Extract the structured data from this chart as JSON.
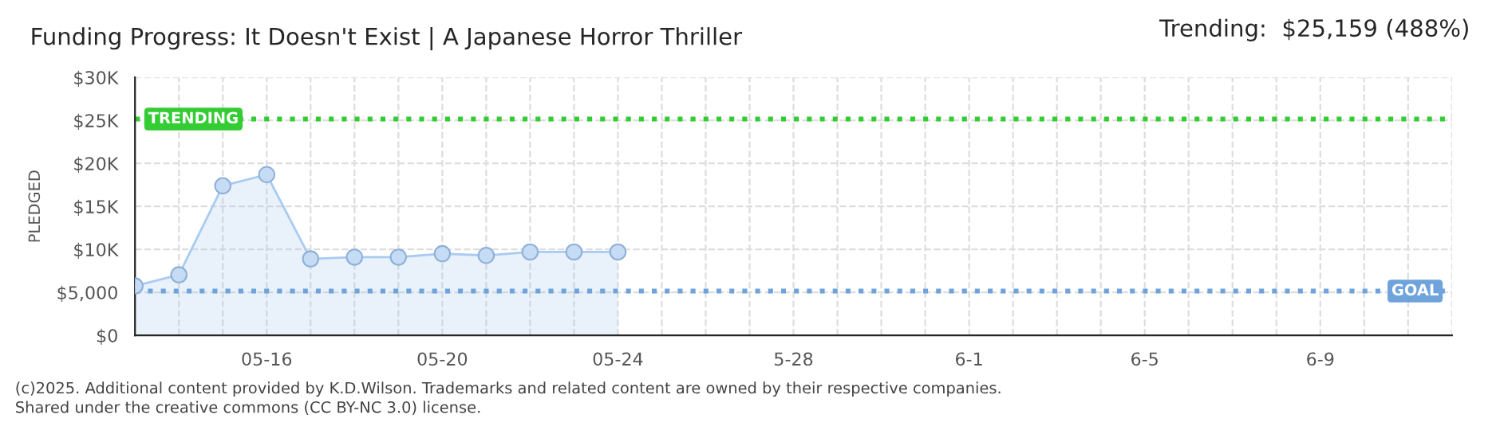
{
  "chart_data": {
    "type": "area",
    "title": "Funding Progress: It Doesn't Exist | A Japanese Horror Thriller",
    "subtitle": "Trending:  $25,159 (488%)",
    "ylabel": "PLEDGED",
    "x": [
      "2025-05-13",
      "2025-05-14",
      "2025-05-15",
      "2025-05-16",
      "2025-05-17",
      "2025-05-18",
      "2025-05-19",
      "2025-05-20",
      "2025-05-21",
      "2025-05-22",
      "2025-05-23",
      "2025-05-24"
    ],
    "series": [
      {
        "color": "#a9cbf0",
        "values": [
          5750,
          7050,
          17400,
          18700,
          8900,
          9100,
          9100,
          9500,
          9300,
          9700,
          9700,
          9700
        ]
      }
    ],
    "xlim": [
      "2025-05-13",
      "2025-06-12"
    ],
    "xticks": [
      {
        "value": "2025-05-13",
        "label": null
      },
      {
        "value": "2025-05-14",
        "label": null
      },
      {
        "value": "2025-05-15",
        "label": null
      },
      {
        "value": "2025-05-16",
        "label": "05-16"
      },
      {
        "value": "2025-05-17",
        "label": null
      },
      {
        "value": "2025-05-18",
        "label": null
      },
      {
        "value": "2025-05-19",
        "label": null
      },
      {
        "value": "2025-05-20",
        "label": "05-20"
      },
      {
        "value": "2025-05-21",
        "label": null
      },
      {
        "value": "2025-05-22",
        "label": null
      },
      {
        "value": "2025-05-23",
        "label": null
      },
      {
        "value": "2025-05-24",
        "label": "05-24"
      },
      {
        "value": "2025-05-25",
        "label": null
      },
      {
        "value": "2025-05-26",
        "label": null
      },
      {
        "value": "2025-05-27",
        "label": null
      },
      {
        "value": "2025-05-28",
        "label": "5-28"
      },
      {
        "value": "2025-05-29",
        "label": null
      },
      {
        "value": "2025-05-30",
        "label": null
      },
      {
        "value": "2025-05-31",
        "label": null
      },
      {
        "value": "2025-06-01",
        "label": "6-1"
      },
      {
        "value": "2025-06-02",
        "label": null
      },
      {
        "value": "2025-06-03",
        "label": null
      },
      {
        "value": "2025-06-04",
        "label": null
      },
      {
        "value": "2025-06-05",
        "label": "6-5"
      },
      {
        "value": "2025-06-06",
        "label": null
      },
      {
        "value": "2025-06-07",
        "label": null
      },
      {
        "value": "2025-06-08",
        "label": null
      },
      {
        "value": "2025-06-09",
        "label": "6-9"
      },
      {
        "value": "2025-06-10",
        "label": null
      },
      {
        "value": "2025-06-11",
        "label": null
      },
      {
        "value": "2025-06-12",
        "label": null
      }
    ],
    "ylim": [
      0,
      30000
    ],
    "yticks": [
      {
        "value": 0,
        "label": "$0"
      },
      {
        "value": 5000,
        "label": "$5,000"
      },
      {
        "value": 10000,
        "label": "$10K"
      },
      {
        "value": 15000,
        "label": "$15K"
      },
      {
        "value": 20000,
        "label": "$20K"
      },
      {
        "value": 25000,
        "label": "$25K"
      },
      {
        "value": 30000,
        "label": "$30K"
      }
    ],
    "ref_lines": [
      {
        "axis": "y",
        "value": 25159,
        "label": "TRENDING",
        "color": "#33cc33",
        "line_style": "dotted"
      },
      {
        "axis": "y",
        "value": 5155,
        "label": "GOAL",
        "color": "#6fa3dc",
        "line_style": "dotted"
      }
    ],
    "grid": true,
    "marker": "circle",
    "legend": false,
    "annotations": [
      "(c)2025. Additional content provided by K.D.Wilson. Trademarks and related content are owned by their respective companies.",
      "Shared under the creative commons (CC BY-NC 3.0) license."
    ]
  }
}
